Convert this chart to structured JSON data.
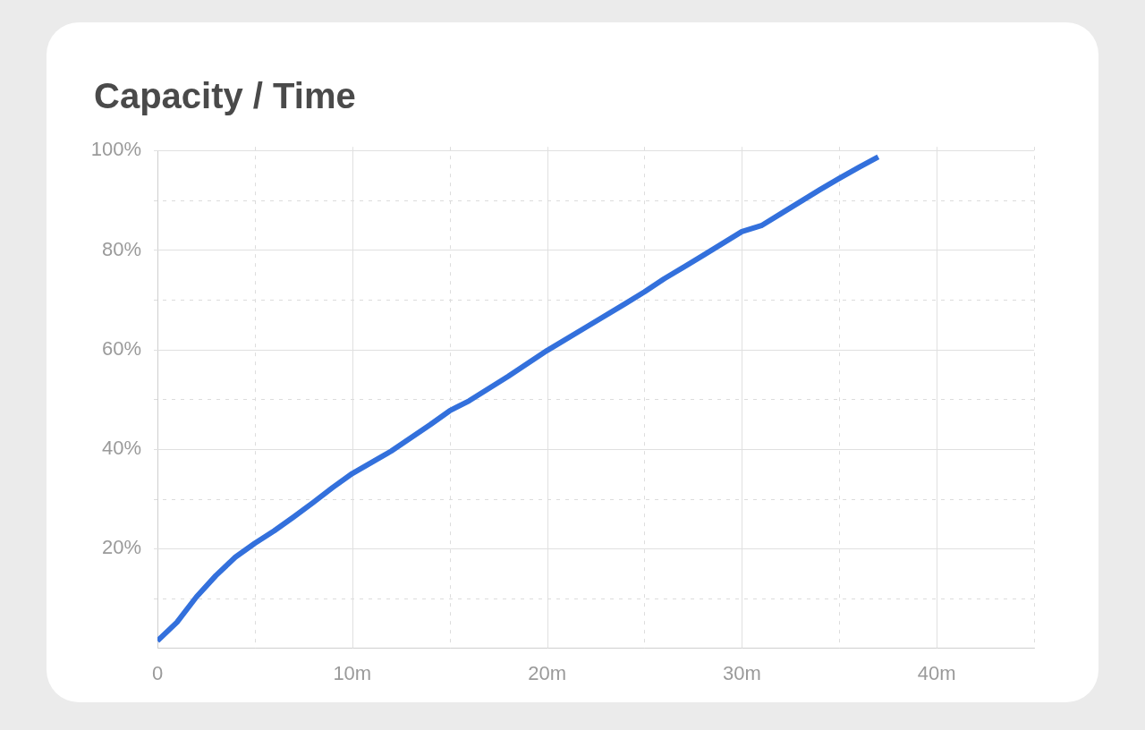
{
  "chart_data": {
    "type": "line",
    "title": "Capacity / Time",
    "grid": true,
    "marker": "none",
    "line_style": "solid",
    "xlim": [
      0,
      45
    ],
    "ylim": [
      0,
      100
    ],
    "xticks": [
      0,
      {
        "value": 5,
        "label": null
      },
      {
        "value": 10,
        "label": "10m"
      },
      {
        "value": 15,
        "label": null
      },
      {
        "value": 20,
        "label": "20m"
      },
      {
        "value": 25,
        "label": null
      },
      {
        "value": 30,
        "label": "30m"
      },
      {
        "value": 35,
        "label": null
      },
      {
        "value": 40,
        "label": "40m"
      },
      {
        "value": 45,
        "label": null
      }
    ],
    "yticks": [
      {
        "value": 0,
        "label": null
      },
      {
        "value": 10,
        "label": null
      },
      {
        "value": 20,
        "label": "20%"
      },
      {
        "value": 30,
        "label": null
      },
      {
        "value": 40,
        "label": "40%"
      },
      {
        "value": 50,
        "label": null
      },
      {
        "value": 60,
        "label": "60%"
      },
      {
        "value": 70,
        "label": null
      },
      {
        "value": 80,
        "label": "80%"
      },
      {
        "value": 90,
        "label": null
      },
      {
        "value": 100,
        "label": "100%"
      }
    ],
    "x": [
      0,
      1,
      2,
      3,
      4,
      5,
      6,
      7,
      8,
      9,
      10,
      12,
      14,
      15,
      16,
      18,
      20,
      22,
      24,
      25,
      26,
      28,
      30,
      31,
      32,
      34,
      35,
      36,
      37
    ],
    "series": [
      {
        "color": "#3370dc",
        "values": [
          1.5,
          5.2,
          10.3,
          14.6,
          18.3,
          21.1,
          23.6,
          26.4,
          29.3,
          32.3,
          35.1,
          39.6,
          44.9,
          47.7,
          49.7,
          54.6,
          59.8,
          64.5,
          69.2,
          71.6,
          74.2,
          78.9,
          83.7,
          84.9,
          87.3,
          92.1,
          94.4,
          96.6,
          98.7
        ]
      }
    ]
  }
}
